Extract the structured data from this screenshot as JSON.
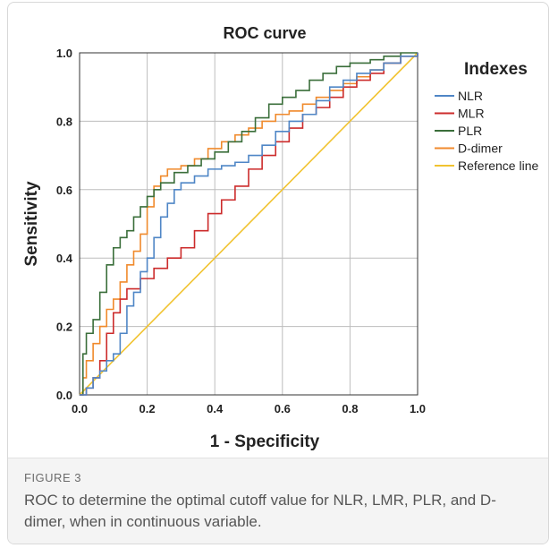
{
  "figure": {
    "label": "FIGURE 3",
    "caption": "ROC to determine the optimal cutoff value for NLR, LMR, PLR, and D-dimer, when in continuous variable."
  },
  "chart_data": {
    "type": "line",
    "title": "ROC curve",
    "xlabel": "1 - Specificity",
    "ylabel": "Sensitivity",
    "xlim": [
      0,
      1
    ],
    "ylim": [
      0,
      1
    ],
    "x_ticks": [
      "0.0",
      "0.2",
      "0.4",
      "0.6",
      "0.8",
      "1.0"
    ],
    "y_ticks": [
      "0.0",
      "0.2",
      "0.4",
      "0.6",
      "0.8",
      "1.0"
    ],
    "grid": true,
    "legend": {
      "title": "Indexes",
      "placement": "right"
    },
    "series": [
      {
        "name": "NLR",
        "color": "#4f86c6",
        "points": [
          [
            0,
            0
          ],
          [
            0.02,
            0.02
          ],
          [
            0.04,
            0.05
          ],
          [
            0.06,
            0.07
          ],
          [
            0.08,
            0.1
          ],
          [
            0.1,
            0.12
          ],
          [
            0.12,
            0.18
          ],
          [
            0.14,
            0.26
          ],
          [
            0.16,
            0.3
          ],
          [
            0.18,
            0.36
          ],
          [
            0.2,
            0.4
          ],
          [
            0.22,
            0.46
          ],
          [
            0.24,
            0.52
          ],
          [
            0.26,
            0.56
          ],
          [
            0.28,
            0.6
          ],
          [
            0.3,
            0.62
          ],
          [
            0.34,
            0.64
          ],
          [
            0.38,
            0.66
          ],
          [
            0.42,
            0.67
          ],
          [
            0.46,
            0.68
          ],
          [
            0.5,
            0.7
          ],
          [
            0.54,
            0.73
          ],
          [
            0.58,
            0.77
          ],
          [
            0.62,
            0.8
          ],
          [
            0.66,
            0.82
          ],
          [
            0.7,
            0.86
          ],
          [
            0.74,
            0.9
          ],
          [
            0.78,
            0.92
          ],
          [
            0.82,
            0.94
          ],
          [
            0.86,
            0.95
          ],
          [
            0.9,
            0.97
          ],
          [
            0.95,
            0.99
          ],
          [
            1,
            1
          ]
        ]
      },
      {
        "name": "MLR",
        "color": "#cc2b2b",
        "points": [
          [
            0,
            0
          ],
          [
            0.02,
            0.02
          ],
          [
            0.04,
            0.05
          ],
          [
            0.06,
            0.1
          ],
          [
            0.08,
            0.18
          ],
          [
            0.1,
            0.24
          ],
          [
            0.12,
            0.28
          ],
          [
            0.14,
            0.31
          ],
          [
            0.18,
            0.34
          ],
          [
            0.22,
            0.37
          ],
          [
            0.26,
            0.4
          ],
          [
            0.3,
            0.43
          ],
          [
            0.34,
            0.48
          ],
          [
            0.38,
            0.53
          ],
          [
            0.42,
            0.57
          ],
          [
            0.46,
            0.61
          ],
          [
            0.5,
            0.66
          ],
          [
            0.54,
            0.7
          ],
          [
            0.58,
            0.74
          ],
          [
            0.62,
            0.78
          ],
          [
            0.66,
            0.82
          ],
          [
            0.7,
            0.84
          ],
          [
            0.74,
            0.87
          ],
          [
            0.78,
            0.9
          ],
          [
            0.82,
            0.92
          ],
          [
            0.86,
            0.94
          ],
          [
            0.9,
            0.97
          ],
          [
            0.95,
            0.99
          ],
          [
            1,
            1
          ]
        ]
      },
      {
        "name": "PLR",
        "color": "#3a6e3a",
        "points": [
          [
            0,
            0
          ],
          [
            0.01,
            0.12
          ],
          [
            0.02,
            0.18
          ],
          [
            0.04,
            0.22
          ],
          [
            0.06,
            0.3
          ],
          [
            0.08,
            0.38
          ],
          [
            0.1,
            0.43
          ],
          [
            0.12,
            0.46
          ],
          [
            0.14,
            0.48
          ],
          [
            0.16,
            0.52
          ],
          [
            0.18,
            0.55
          ],
          [
            0.2,
            0.58
          ],
          [
            0.22,
            0.6
          ],
          [
            0.24,
            0.62
          ],
          [
            0.28,
            0.65
          ],
          [
            0.32,
            0.67
          ],
          [
            0.36,
            0.69
          ],
          [
            0.4,
            0.71
          ],
          [
            0.44,
            0.74
          ],
          [
            0.48,
            0.77
          ],
          [
            0.52,
            0.81
          ],
          [
            0.56,
            0.85
          ],
          [
            0.6,
            0.87
          ],
          [
            0.64,
            0.89
          ],
          [
            0.68,
            0.92
          ],
          [
            0.72,
            0.94
          ],
          [
            0.76,
            0.96
          ],
          [
            0.8,
            0.97
          ],
          [
            0.86,
            0.98
          ],
          [
            0.9,
            0.99
          ],
          [
            0.95,
            1
          ],
          [
            1,
            1
          ]
        ]
      },
      {
        "name": "D-dimer",
        "color": "#f08a2c",
        "points": [
          [
            0,
            0
          ],
          [
            0.01,
            0.05
          ],
          [
            0.02,
            0.1
          ],
          [
            0.04,
            0.15
          ],
          [
            0.06,
            0.2
          ],
          [
            0.08,
            0.25
          ],
          [
            0.1,
            0.28
          ],
          [
            0.12,
            0.33
          ],
          [
            0.14,
            0.38
          ],
          [
            0.16,
            0.42
          ],
          [
            0.18,
            0.47
          ],
          [
            0.2,
            0.55
          ],
          [
            0.22,
            0.61
          ],
          [
            0.24,
            0.64
          ],
          [
            0.26,
            0.66
          ],
          [
            0.3,
            0.67
          ],
          [
            0.34,
            0.69
          ],
          [
            0.38,
            0.72
          ],
          [
            0.42,
            0.74
          ],
          [
            0.46,
            0.76
          ],
          [
            0.5,
            0.78
          ],
          [
            0.54,
            0.8
          ],
          [
            0.58,
            0.82
          ],
          [
            0.62,
            0.83
          ],
          [
            0.66,
            0.85
          ],
          [
            0.7,
            0.87
          ],
          [
            0.74,
            0.89
          ],
          [
            0.78,
            0.91
          ],
          [
            0.82,
            0.93
          ],
          [
            0.86,
            0.95
          ],
          [
            0.9,
            0.97
          ],
          [
            0.95,
            0.99
          ],
          [
            1,
            1
          ]
        ]
      },
      {
        "name": "Reference line",
        "color": "#f1c330",
        "points": [
          [
            0,
            0
          ],
          [
            1,
            1
          ]
        ]
      }
    ]
  }
}
